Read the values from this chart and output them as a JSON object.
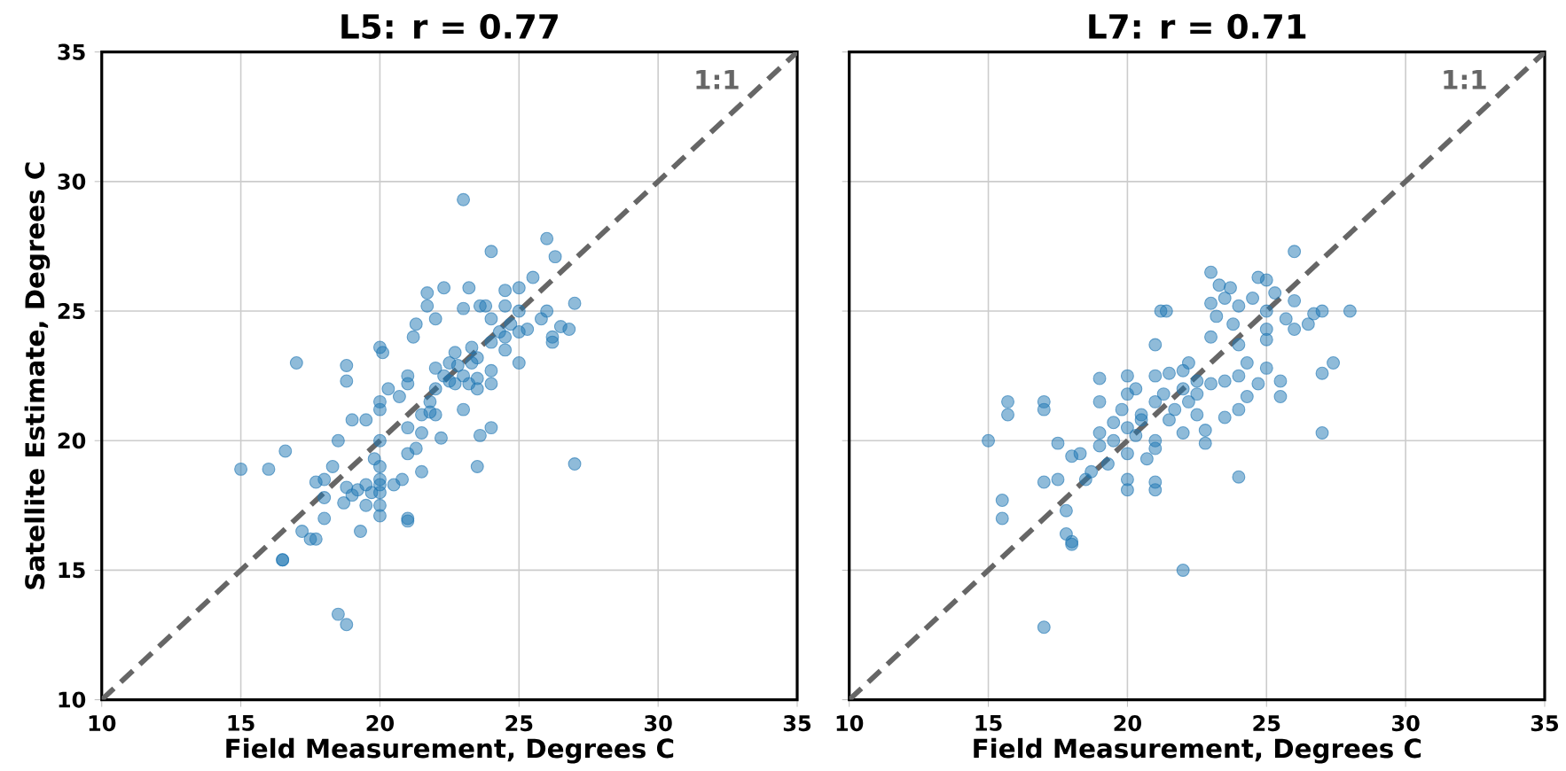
{
  "chart_data": [
    {
      "type": "scatter",
      "title": "L5: r = 0.77",
      "xlabel": "Field Measurement, Degrees C",
      "ylabel": "Satellite Estimate, Degrees C",
      "xlim": [
        10,
        35
      ],
      "ylim": [
        10,
        35
      ],
      "xticks": [
        10,
        15,
        20,
        25,
        30,
        35
      ],
      "yticks": [
        10,
        15,
        20,
        25,
        30,
        35
      ],
      "grid": true,
      "series": [
        {
          "type": "scatter",
          "marker": "circle",
          "color": "#1f77b4",
          "x": [
            15,
            16,
            16.6,
            17,
            16.5,
            16.5,
            17.2,
            17.5,
            17.7,
            18,
            18,
            18,
            18.3,
            18.5,
            18.5,
            18.8,
            18.7,
            18.8,
            18.8,
            18.8,
            19,
            19,
            19.2,
            19.3,
            19.5,
            19.5,
            19.7,
            19.8,
            20,
            20,
            20,
            20,
            20,
            20,
            20,
            20,
            20,
            20,
            20.1,
            20.3,
            20.5,
            20.8,
            21,
            21,
            21,
            21,
            21,
            21,
            21.2,
            21.3,
            21.5,
            21.5,
            21.5,
            21.7,
            21.7,
            21.8,
            21.8,
            22,
            22,
            22,
            22,
            22.3,
            22.3,
            22.5,
            22.5,
            22.7,
            22.8,
            23,
            23,
            23,
            23,
            23.2,
            23.2,
            23.3,
            23.5,
            23.5,
            23.5,
            23.5,
            23.6,
            23.6,
            23.8,
            24,
            24,
            24,
            24,
            24,
            24.3,
            24.5,
            24.5,
            24.5,
            24.7,
            25,
            25,
            25,
            25,
            25.3,
            25.5,
            25.8,
            26,
            26,
            26.2,
            26.2,
            26.3,
            26.5,
            26.8,
            27,
            27,
            24.5,
            22.7,
            23.3,
            22.2,
            24,
            21.3,
            17.7,
            19.5,
            20.7
          ],
          "values": [
            18.9,
            18.9,
            19.6,
            23,
            15.4,
            15.4,
            16.5,
            16.2,
            16.2,
            17,
            17.8,
            18.5,
            19,
            20,
            13.3,
            12.9,
            17.6,
            18.2,
            22.9,
            22.3,
            20.8,
            17.9,
            18.1,
            16.5,
            20.8,
            17.5,
            18,
            19.3,
            21.5,
            21.2,
            20,
            19,
            18.5,
            18.3,
            18,
            17.5,
            17.1,
            23.6,
            23.4,
            22,
            18.3,
            18.5,
            17,
            16.9,
            22.2,
            22.5,
            19.5,
            20.5,
            24,
            24.5,
            21,
            20.3,
            18.8,
            25.7,
            25.2,
            21.5,
            21.1,
            21,
            22,
            22.8,
            24.7,
            22.5,
            25.9,
            23,
            22.3,
            22.2,
            22.9,
            21.2,
            22.5,
            25.1,
            29.3,
            25.9,
            22.2,
            23.6,
            22.4,
            23.2,
            22,
            19,
            20.2,
            25.2,
            25.2,
            22.2,
            22.7,
            23.8,
            24.7,
            27.3,
            24.2,
            25.2,
            24,
            23.5,
            24.5,
            24.2,
            23,
            25.9,
            25,
            24.3,
            26.3,
            24.7,
            27.8,
            25,
            24,
            23.8,
            27.1,
            24.4,
            24.3,
            25.3,
            19.1,
            25.8,
            23.4,
            23,
            20.1,
            20.5,
            19.7,
            18.4,
            18.3,
            21.7
          ]
        },
        {
          "type": "line",
          "name": "1:1",
          "color": "#666666",
          "line_style": "dashed",
          "marker": "none",
          "x": [
            10,
            35
          ],
          "values": [
            10,
            35
          ]
        }
      ]
    },
    {
      "type": "scatter",
      "title": "L7: r = 0.71",
      "xlabel": "Field Measurement, Degrees C",
      "xlim": [
        10,
        35
      ],
      "ylim": [
        10,
        35
      ],
      "xticks": [
        10,
        15,
        20,
        25,
        30,
        35
      ],
      "yticks": [
        10,
        15,
        20,
        25,
        30,
        35
      ],
      "tick_labels": "x",
      "grid": true,
      "series": [
        {
          "type": "scatter",
          "marker": "circle",
          "color": "#1f77b4",
          "x": [
            15,
            15.5,
            15.5,
            15.7,
            15.7,
            17,
            17,
            17,
            17,
            17.5,
            17.5,
            17.8,
            17.8,
            18,
            18,
            18,
            18.3,
            18.5,
            18.7,
            19,
            19,
            19,
            19.3,
            19.5,
            19.5,
            19.8,
            20,
            20,
            20,
            20,
            20,
            20,
            20.3,
            20.3,
            20.5,
            20.5,
            20.7,
            21,
            21,
            21,
            21,
            21,
            21,
            21,
            21.2,
            21.4,
            21.3,
            21.5,
            21.5,
            21.7,
            22,
            22,
            22,
            22,
            22.2,
            22.2,
            22.5,
            22.5,
            22.8,
            22.8,
            23,
            23,
            23,
            23,
            23.2,
            23.3,
            23.5,
            23.5,
            23.5,
            23.7,
            23.8,
            24,
            24,
            24,
            24,
            24,
            24.3,
            24.3,
            24.5,
            24.7,
            24.7,
            25,
            25,
            25,
            25,
            25.3,
            25.5,
            25.5,
            25.7,
            26,
            26,
            26,
            26.5,
            26.7,
            27,
            27,
            27,
            27.4,
            28,
            25,
            22.5,
            19
          ],
          "values": [
            20,
            17.7,
            17,
            21.5,
            21,
            21.5,
            21.2,
            18.4,
            12.8,
            19.9,
            18.5,
            17.3,
            16.4,
            16,
            19.4,
            16.1,
            19.5,
            18.5,
            18.8,
            19.8,
            21.5,
            22.4,
            19.1,
            20,
            20.7,
            21.2,
            21.8,
            22.5,
            20.5,
            19.5,
            18.5,
            18.1,
            20.2,
            22,
            21,
            20.8,
            19.3,
            19.7,
            18.1,
            18.4,
            20,
            21.5,
            22.5,
            23.7,
            25,
            25,
            21.8,
            22.6,
            20.8,
            21.2,
            22,
            22.7,
            20.3,
            15,
            23,
            21.5,
            21.8,
            22.3,
            20.4,
            19.9,
            24,
            22.2,
            26.5,
            25.3,
            24.8,
            26,
            25.5,
            22.3,
            20.9,
            25.9,
            24.5,
            21.2,
            22.5,
            25.2,
            23.7,
            18.6,
            21.7,
            23,
            25.5,
            26.3,
            22.2,
            25,
            24.3,
            26.2,
            23.9,
            25.7,
            22.3,
            21.7,
            24.7,
            25.4,
            24.3,
            27.3,
            24.5,
            24.9,
            25,
            22.6,
            20.3,
            23,
            25,
            22.8,
            21,
            20.3
          ]
        },
        {
          "type": "line",
          "name": "1:1",
          "color": "#666666",
          "line_style": "dashed",
          "marker": "none",
          "x": [
            10,
            35
          ],
          "values": [
            10,
            35
          ]
        }
      ]
    }
  ]
}
